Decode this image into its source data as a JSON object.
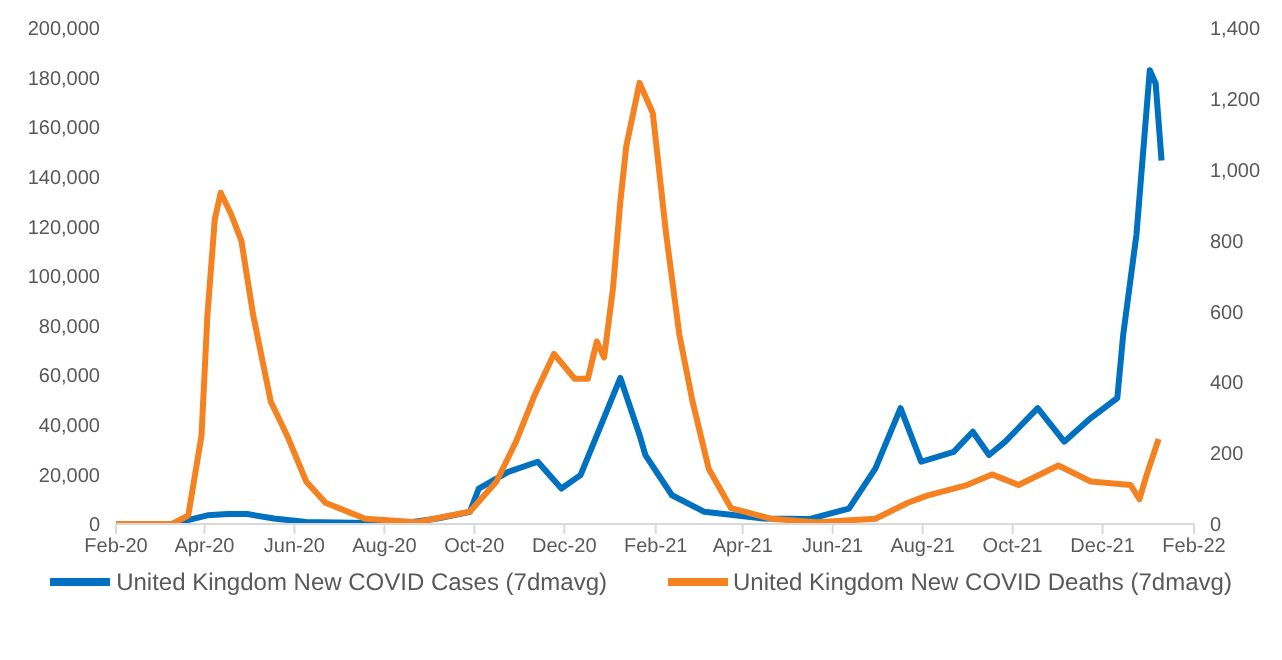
{
  "chart_data": {
    "type": "line",
    "series": [
      {
        "name": "United Kingdom New COVID Cases (7dmavg)",
        "color": "#0070c0",
        "x": [
          "2020-02-01",
          "2020-03-10",
          "2020-04-03",
          "2020-04-17",
          "2020-04-30",
          "2020-05-18",
          "2020-06-09",
          "2020-07-10",
          "2020-08-14",
          "2020-09-06",
          "2020-09-28",
          "2020-10-04",
          "2020-10-24",
          "2020-11-13",
          "2020-11-29",
          "2020-12-12",
          "2020-12-25",
          "2021-01-08",
          "2021-01-21",
          "2021-01-25",
          "2021-02-12",
          "2021-03-06",
          "2021-04-15",
          "2021-05-16",
          "2021-06-12",
          "2021-06-30",
          "2021-07-17",
          "2021-07-31",
          "2021-08-22",
          "2021-09-04",
          "2021-09-15",
          "2021-09-26",
          "2021-10-18",
          "2021-11-05",
          "2021-11-23",
          "2021-12-11",
          "2021-12-15",
          "2021-12-24",
          "2022-01-02",
          "2022-01-06",
          "2022-01-10"
        ],
        "values": [
          0,
          0,
          3500,
          4000,
          4000,
          2200,
          800,
          500,
          300,
          2200,
          4900,
          14300,
          21000,
          25100,
          14300,
          19700,
          38600,
          58900,
          35900,
          27800,
          11600,
          4900,
          2200,
          2000,
          6200,
          22400,
          46700,
          25100,
          29100,
          37200,
          27800,
          33200,
          46700,
          33200,
          42700,
          50800,
          76400,
          116800,
          183000,
          177600,
          146600
        ]
      },
      {
        "name": "United Kingdom New COVID Deaths (7dmavg)",
        "color": "#f58220",
        "axis": "y2",
        "x": [
          "2020-02-01",
          "2020-03-10",
          "2020-03-21",
          "2020-03-30",
          "2020-04-03",
          "2020-04-08",
          "2020-04-12",
          "2020-04-19",
          "2020-04-26",
          "2020-05-04",
          "2020-05-16",
          "2020-05-27",
          "2020-06-09",
          "2020-06-22",
          "2020-07-19",
          "2020-08-23",
          "2020-09-28",
          "2020-10-16",
          "2020-10-29",
          "2020-11-11",
          "2020-11-24",
          "2020-12-08",
          "2020-12-17",
          "2020-12-23",
          "2020-12-28",
          "2021-01-03",
          "2021-01-08",
          "2021-01-12",
          "2021-01-21",
          "2021-01-30",
          "2021-02-08",
          "2021-02-17",
          "2021-02-26",
          "2021-03-09",
          "2021-03-24",
          "2021-04-20",
          "2021-05-21",
          "2021-06-30",
          "2021-07-22",
          "2021-08-04",
          "2021-08-31",
          "2021-09-17",
          "2021-10-05",
          "2021-11-01",
          "2021-11-23",
          "2021-12-20",
          "2021-12-26",
          "2021-12-31",
          "2022-01-08"
        ],
        "values": [
          0,
          0,
          24,
          250,
          590,
          860,
          935,
          875,
          800,
          590,
          345,
          250,
          120,
          60,
          15,
          5,
          35,
          120,
          230,
          365,
          480,
          410,
          410,
          515,
          470,
          665,
          910,
          1065,
          1245,
          1160,
          820,
          535,
          345,
          155,
          45,
          15,
          5,
          15,
          60,
          80,
          110,
          140,
          110,
          165,
          120,
          110,
          70,
          140,
          240
        ]
      }
    ],
    "xlim": [
      "2020-02-01",
      "2022-02-01"
    ],
    "xticks": [
      {
        "value": "2020-02-01",
        "label": "Feb-20"
      },
      {
        "value": "2020-04-01",
        "label": "Apr-20"
      },
      {
        "value": "2020-06-01",
        "label": "Jun-20"
      },
      {
        "value": "2020-08-01",
        "label": "Aug-20"
      },
      {
        "value": "2020-10-01",
        "label": "Oct-20"
      },
      {
        "value": "2020-12-01",
        "label": "Dec-20"
      },
      {
        "value": "2021-02-01",
        "label": "Feb-21"
      },
      {
        "value": "2021-04-01",
        "label": "Apr-21"
      },
      {
        "value": "2021-06-01",
        "label": "Jun-21"
      },
      {
        "value": "2021-08-01",
        "label": "Aug-21"
      },
      {
        "value": "2021-10-01",
        "label": "Oct-21"
      },
      {
        "value": "2021-12-01",
        "label": "Dec-21"
      },
      {
        "value": "2022-02-01",
        "label": "Feb-22"
      }
    ],
    "ylim": [
      0,
      200000
    ],
    "yticks": [
      {
        "value": 0,
        "label": "0"
      },
      {
        "value": 20000,
        "label": "20,000"
      },
      {
        "value": 40000,
        "label": "40,000"
      },
      {
        "value": 60000,
        "label": "60,000"
      },
      {
        "value": 80000,
        "label": "80,000"
      },
      {
        "value": 100000,
        "label": "100,000"
      },
      {
        "value": 120000,
        "label": "120,000"
      },
      {
        "value": 140000,
        "label": "140,000"
      },
      {
        "value": 160000,
        "label": "160,000"
      },
      {
        "value": 180000,
        "label": "180,000"
      },
      {
        "value": 200000,
        "label": "200,000"
      }
    ],
    "y2lim": [
      0,
      1400
    ],
    "y2ticks": [
      {
        "value": 0,
        "label": "0"
      },
      {
        "value": 200,
        "label": "200"
      },
      {
        "value": 400,
        "label": "400"
      },
      {
        "value": 600,
        "label": "600"
      },
      {
        "value": 800,
        "label": "800"
      },
      {
        "value": 1000,
        "label": "1,000"
      },
      {
        "value": 1200,
        "label": "1,200"
      },
      {
        "value": 1400,
        "label": "1,400"
      }
    ],
    "grid": false,
    "legend": "bottom",
    "marker": "none",
    "line_style": "solid"
  }
}
